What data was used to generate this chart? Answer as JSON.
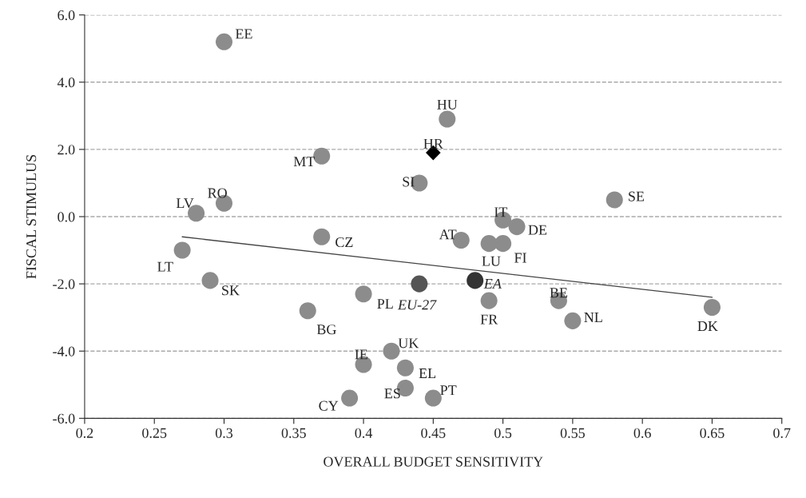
{
  "chart_data": {
    "type": "scatter",
    "xlabel": "OVERALL BUDGET SENSITIVITY",
    "ylabel": "FISCAL STIMULUS",
    "xlim": [
      0.2,
      0.7
    ],
    "xticks": [
      0.2,
      0.25,
      0.3,
      0.35,
      0.4,
      0.45,
      0.5,
      0.55,
      0.6,
      0.65,
      0.7
    ],
    "ylim": [
      -6,
      6
    ],
    "yticks": [
      {
        "value": -6,
        "label": "-6.0"
      },
      {
        "value": -4,
        "label": "-4.0"
      },
      {
        "value": -2,
        "label": "-2.0"
      },
      {
        "value": 0,
        "label": "0.0"
      },
      {
        "value": 2,
        "label": "2.0"
      },
      {
        "value": 4,
        "label": "4.0"
      },
      {
        "value": 6,
        "label": "6.0"
      }
    ],
    "grid": "y",
    "legend": false,
    "series": [
      {
        "marker": "circle",
        "color": "#8c8c8c",
        "x": [
          0.3,
          0.28,
          0.3,
          0.27,
          0.29,
          0.37,
          0.37,
          0.36,
          0.4,
          0.4,
          0.39,
          0.42,
          0.43,
          0.43,
          0.44,
          0.46,
          0.45,
          0.5,
          0.51,
          0.47,
          0.49,
          0.5,
          0.49,
          0.54,
          0.55,
          0.65,
          0.58
        ],
        "values": [
          5.2,
          0.1,
          0.4,
          -1.0,
          -1.9,
          -0.6,
          1.8,
          -2.8,
          -2.3,
          -4.4,
          -5.4,
          -4.0,
          -4.5,
          -5.1,
          1.0,
          2.9,
          -5.4,
          -0.1,
          -0.3,
          -0.7,
          -0.8,
          -0.8,
          -2.5,
          -2.5,
          -3.1,
          -2.7,
          0.5
        ]
      },
      {
        "marker": "circle",
        "color": "#555555",
        "x": [
          0.44
        ],
        "values": [
          -2.0
        ]
      },
      {
        "marker": "circle",
        "color": "#333333",
        "x": [
          0.48
        ],
        "values": [
          -1.9
        ]
      },
      {
        "marker": "diamond",
        "color": "#000000",
        "x": [
          0.45
        ],
        "values": [
          1.9
        ]
      },
      {
        "type": "line",
        "marker": "none",
        "line_style": "solid",
        "color": "#444444",
        "x": [
          0.27,
          0.65
        ],
        "values": [
          -0.6,
          -2.4
        ]
      }
    ],
    "annotations": [
      {
        "text": "EE",
        "x": 0.3,
        "y": 5.2
      },
      {
        "text": "LV",
        "x": 0.28,
        "y": 0.1
      },
      {
        "text": "RO",
        "x": 0.3,
        "y": 0.4
      },
      {
        "text": "LT",
        "x": 0.27,
        "y": -1.0
      },
      {
        "text": "SK",
        "x": 0.29,
        "y": -1.9
      },
      {
        "text": "CZ",
        "x": 0.37,
        "y": -0.6
      },
      {
        "text": "MT",
        "x": 0.37,
        "y": 1.8
      },
      {
        "text": "BG",
        "x": 0.36,
        "y": -2.8
      },
      {
        "text": "PL",
        "x": 0.4,
        "y": -2.3
      },
      {
        "text": "IE",
        "x": 0.4,
        "y": -4.4
      },
      {
        "text": "CY",
        "x": 0.39,
        "y": -5.4
      },
      {
        "text": "UK",
        "x": 0.42,
        "y": -4.0
      },
      {
        "text": "EL",
        "x": 0.43,
        "y": -4.5
      },
      {
        "text": "ES",
        "x": 0.43,
        "y": -5.1
      },
      {
        "text": "SI",
        "x": 0.44,
        "y": 1.0
      },
      {
        "text": "HU",
        "x": 0.46,
        "y": 2.9
      },
      {
        "text": "PT",
        "x": 0.45,
        "y": -5.4
      },
      {
        "text": "IT",
        "x": 0.5,
        "y": -0.1
      },
      {
        "text": "DE",
        "x": 0.51,
        "y": -0.3
      },
      {
        "text": "AT",
        "x": 0.47,
        "y": -0.7
      },
      {
        "text": "LU",
        "x": 0.49,
        "y": -0.8
      },
      {
        "text": "FI",
        "x": 0.5,
        "y": -0.8
      },
      {
        "text": "FR",
        "x": 0.49,
        "y": -2.5
      },
      {
        "text": "BE",
        "x": 0.54,
        "y": -2.5
      },
      {
        "text": "NL",
        "x": 0.55,
        "y": -3.1
      },
      {
        "text": "DK",
        "x": 0.65,
        "y": -2.7
      },
      {
        "text": "SE",
        "x": 0.58,
        "y": 0.5
      },
      {
        "text": "EU-27",
        "x": 0.44,
        "y": -2.0
      },
      {
        "text": "EA",
        "x": 0.48,
        "y": -1.9
      },
      {
        "text": "HR",
        "x": 0.45,
        "y": 1.9
      }
    ]
  }
}
